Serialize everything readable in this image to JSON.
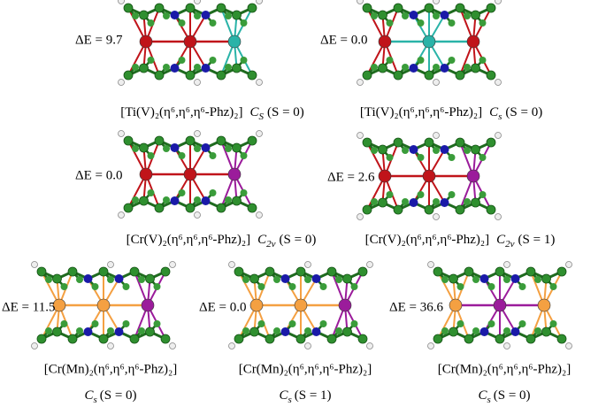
{
  "panels": [
    {
      "energy": "ΔE = 9.7",
      "formula": "[Ti(V)₂(η⁶,η⁶,η⁶-Phz)₂]",
      "point_group": "C",
      "point_group_sub": "S",
      "state": "(S = 0)"
    },
    {
      "energy": "ΔE = 0.0",
      "formula": "[Ti(V)₂(η⁶,η⁶,η⁶-Phz)₂]",
      "point_group": "C",
      "point_group_sub": "s",
      "state": "(S = 0)"
    },
    {
      "energy": "ΔE = 0.0",
      "formula": "[Cr(V)₂(η⁶,η⁶,η⁶-Phz)₂]",
      "point_group": "C",
      "point_group_sub": "2v",
      "state": "(S = 0)"
    },
    {
      "energy": "ΔE = 2.6",
      "formula": "[Cr(V)₂(η⁶,η⁶,η⁶-Phz)₂]",
      "point_group": "C",
      "point_group_sub": "2v",
      "state": "(S = 1)"
    },
    {
      "energy": "ΔE = 11.5",
      "formula": "[Cr(Mn)₂(η⁶,η⁶,η⁶-Phz)₂]",
      "point_group": "C",
      "point_group_sub": "s",
      "state": "(S = 0)"
    },
    {
      "energy": "ΔE = 0.0",
      "formula": "[Cr(Mn)₂(η⁶,η⁶,η⁶-Phz)₂]",
      "point_group": "C",
      "point_group_sub": "s",
      "state": "(S = 1)"
    },
    {
      "energy": "ΔE = 36.6",
      "formula": "[Cr(Mn)₂(η⁶,η⁶,η⁶-Phz)₂]",
      "point_group": "C",
      "point_group_sub": "s",
      "state": "(S = 0)"
    }
  ]
}
